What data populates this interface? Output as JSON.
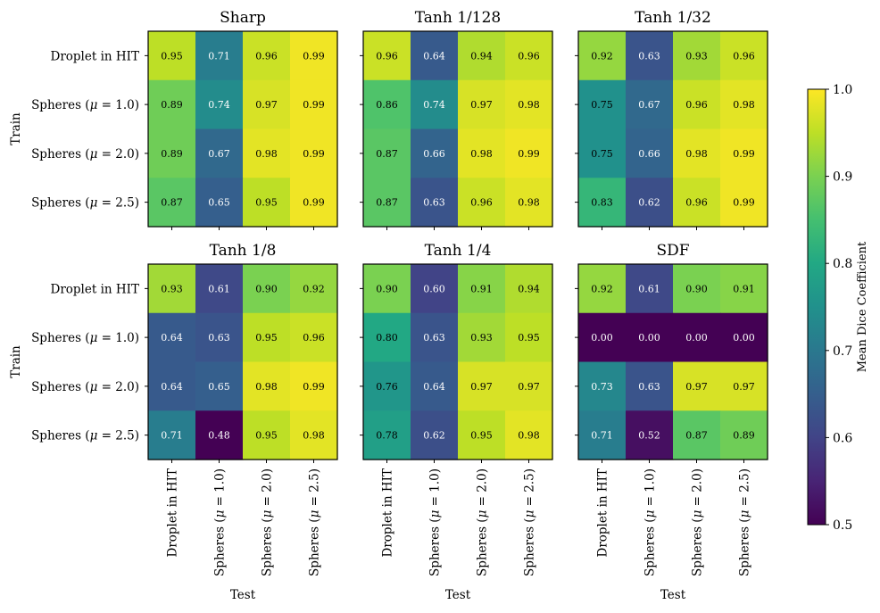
{
  "chart_data": {
    "type": "heatmap",
    "row_labels": [
      "Droplet in HIT",
      "Spheres (μ = 1.0)",
      "Spheres (μ = 2.0)",
      "Spheres (μ = 2.5)"
    ],
    "col_labels": [
      "Droplet in HIT",
      "Spheres (μ = 1.0)",
      "Spheres (μ = 2.0)",
      "Spheres (μ = 2.5)"
    ],
    "ylabel": "Train",
    "xlabel": "Test",
    "colorbar": {
      "label": "Mean Dice Coefficient",
      "range": [
        0.5,
        1.0
      ],
      "ticks": [
        "0.5",
        "0.6",
        "0.7",
        "0.8",
        "0.9",
        "1.0"
      ],
      "colormap": "viridis"
    },
    "panels": [
      {
        "title": "Sharp",
        "values": [
          [
            0.95,
            0.71,
            0.96,
            0.99
          ],
          [
            0.89,
            0.74,
            0.97,
            0.99
          ],
          [
            0.89,
            0.67,
            0.98,
            0.99
          ],
          [
            0.87,
            0.65,
            0.95,
            0.99
          ]
        ]
      },
      {
        "title": "Tanh 1/128",
        "values": [
          [
            0.96,
            0.64,
            0.94,
            0.96
          ],
          [
            0.86,
            0.74,
            0.97,
            0.98
          ],
          [
            0.87,
            0.66,
            0.98,
            0.99
          ],
          [
            0.87,
            0.63,
            0.96,
            0.98
          ]
        ]
      },
      {
        "title": "Tanh 1/32",
        "values": [
          [
            0.92,
            0.63,
            0.93,
            0.96
          ],
          [
            0.75,
            0.67,
            0.96,
            0.98
          ],
          [
            0.75,
            0.66,
            0.98,
            0.99
          ],
          [
            0.83,
            0.62,
            0.96,
            0.99
          ]
        ]
      },
      {
        "title": "Tanh 1/8",
        "values": [
          [
            0.93,
            0.61,
            0.9,
            0.92
          ],
          [
            0.64,
            0.63,
            0.95,
            0.96
          ],
          [
            0.64,
            0.65,
            0.98,
            0.99
          ],
          [
            0.71,
            0.48,
            0.95,
            0.98
          ]
        ]
      },
      {
        "title": "Tanh 1/4",
        "values": [
          [
            0.9,
            0.6,
            0.91,
            0.94
          ],
          [
            0.8,
            0.63,
            0.93,
            0.95
          ],
          [
            0.76,
            0.64,
            0.97,
            0.97
          ],
          [
            0.78,
            0.62,
            0.95,
            0.98
          ]
        ]
      },
      {
        "title": "SDF",
        "values": [
          [
            0.92,
            0.61,
            0.9,
            0.91
          ],
          [
            0.0,
            0.0,
            0.0,
            0.0
          ],
          [
            0.73,
            0.63,
            0.97,
            0.97
          ],
          [
            0.71,
            0.52,
            0.87,
            0.89
          ]
        ]
      }
    ]
  }
}
